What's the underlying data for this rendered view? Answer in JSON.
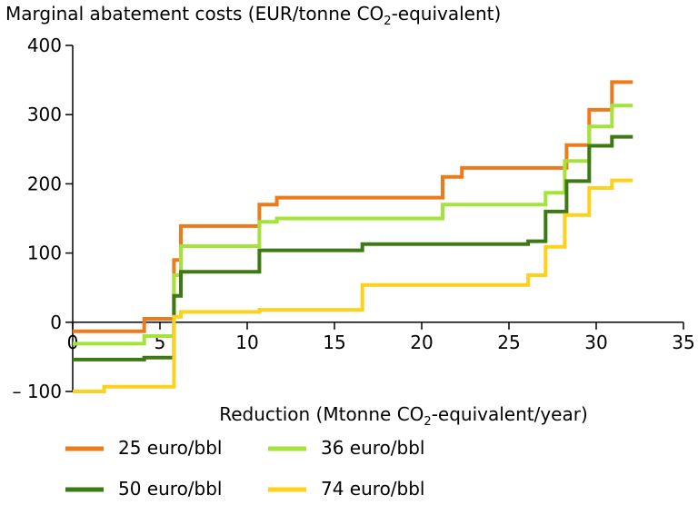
{
  "chart_data": {
    "type": "line",
    "step": true,
    "ylabel_main": "Marginal abatement costs (EUR/tonne CO",
    "ylabel_sub": "2",
    "ylabel_tail": "-equivalent)",
    "xlabel_main": "Reduction (Mtonne CO",
    "xlabel_sub": "2",
    "xlabel_tail": "-equivalent/year)",
    "xlim": [
      0,
      35
    ],
    "ylim": [
      -100,
      400
    ],
    "xticks": [
      {
        "value": 0,
        "label": "0"
      },
      {
        "value": 5,
        "label": "5"
      },
      {
        "value": 10,
        "label": "10"
      },
      {
        "value": 15,
        "label": "15"
      },
      {
        "value": 20,
        "label": "20"
      },
      {
        "value": 25,
        "label": "25"
      },
      {
        "value": 30,
        "label": "30"
      },
      {
        "value": 35,
        "label": "35"
      }
    ],
    "yticks": [
      {
        "value": -100,
        "label": "– 100"
      },
      {
        "value": 0,
        "label": "0"
      },
      {
        "value": 100,
        "label": "100"
      },
      {
        "value": 200,
        "label": "200"
      },
      {
        "value": 300,
        "label": "300"
      },
      {
        "value": 400,
        "label": "400"
      }
    ],
    "grid": false,
    "legend_position": "bottom",
    "series": [
      {
        "name": "25 euro/bbl",
        "color": "#ef7a1a",
        "x": [
          0,
          4.1,
          5.8,
          6.2,
          10.7,
          11.7,
          21.2,
          22.3,
          28.3,
          29.6,
          30.9,
          32.1
        ],
        "y": [
          -13,
          5,
          90,
          139,
          170,
          180,
          210,
          223,
          256,
          307,
          347,
          347
        ]
      },
      {
        "name": "36 euro/bbl",
        "color": "#a4e33a",
        "x": [
          0,
          4.1,
          5.8,
          6.2,
          10.7,
          11.7,
          21.2,
          27.1,
          28.2,
          29.6,
          30.9,
          32.1
        ],
        "y": [
          -31,
          -20,
          68,
          110,
          145,
          150,
          170,
          187,
          233,
          283,
          313,
          313
        ]
      },
      {
        "name": "50 euro/bbl",
        "color": "#3d7a14",
        "x": [
          0,
          4.1,
          5.8,
          6.2,
          10.7,
          16.6,
          26.1,
          27.1,
          28.3,
          29.6,
          30.9,
          32.1
        ],
        "y": [
          -54,
          -51,
          38,
          73,
          104,
          113,
          117,
          160,
          204,
          255,
          268,
          268
        ]
      },
      {
        "name": "74 euro/bbl",
        "color": "#ffd11a",
        "x": [
          0,
          1.8,
          5.8,
          6.2,
          10.7,
          16.6,
          26.1,
          27.1,
          28.2,
          29.6,
          30.9,
          32.1
        ],
        "y": [
          -100,
          -93,
          8,
          15,
          18,
          54,
          68,
          109,
          155,
          194,
          205,
          205
        ]
      }
    ]
  }
}
